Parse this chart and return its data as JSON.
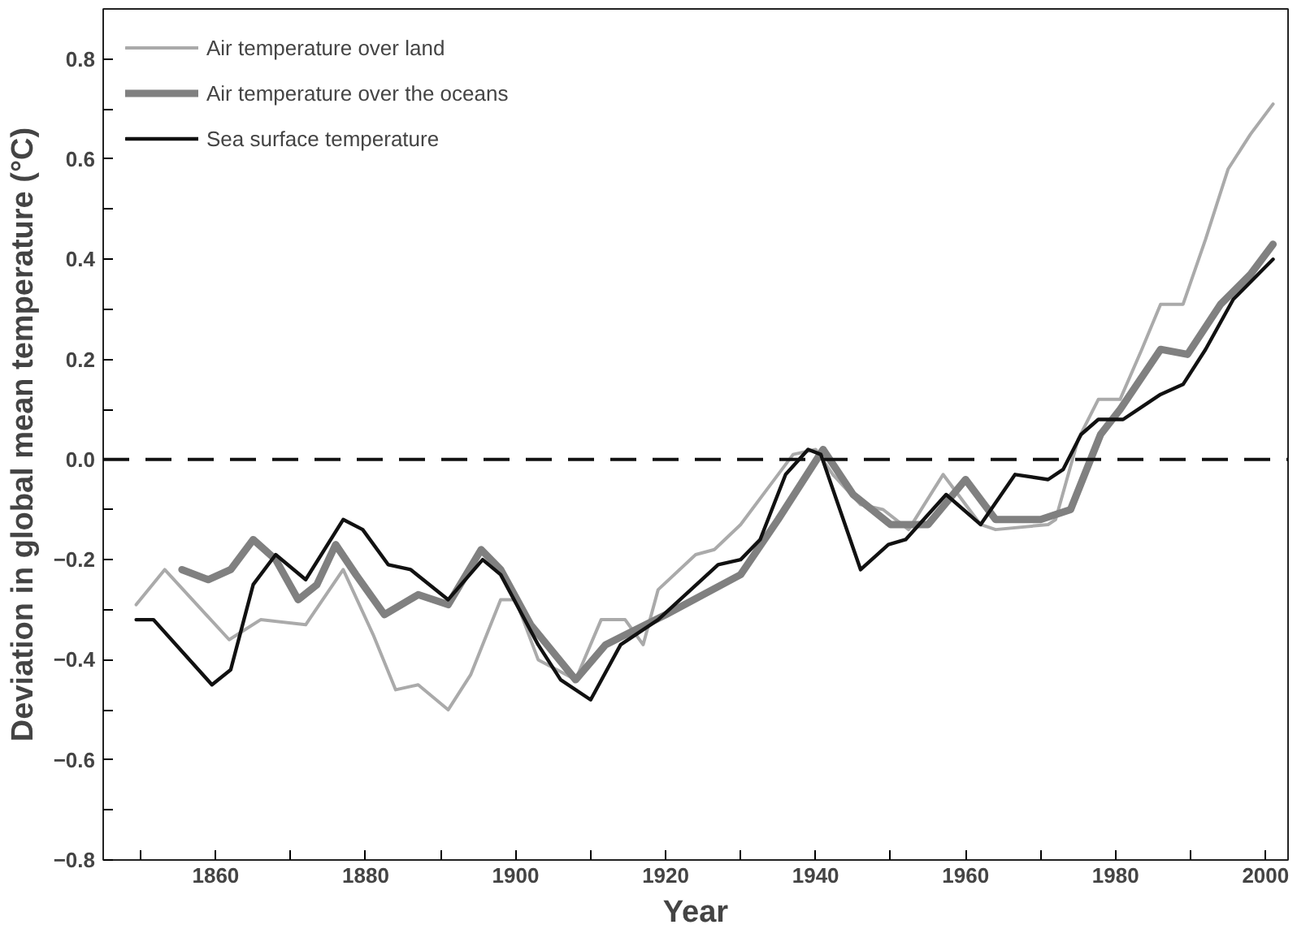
{
  "chart_data": {
    "type": "line",
    "xlabel": "Year",
    "ylabel": "Deviation in global mean temperature (°C)",
    "xlim": [
      1845,
      2003
    ],
    "ylim": [
      -0.8,
      0.9
    ],
    "xticks": [
      {
        "value": 1850,
        "label": null
      },
      1860,
      {
        "value": 1870,
        "label": null
      },
      1880,
      {
        "value": 1890,
        "label": null
      },
      1900,
      {
        "value": 1910,
        "label": null
      },
      1920,
      {
        "value": 1930,
        "label": null
      },
      1940,
      {
        "value": 1950,
        "label": null
      },
      1960,
      {
        "value": 1970,
        "label": null
      },
      1980,
      {
        "value": 1990,
        "label": null
      },
      2000
    ],
    "yticks": [
      {
        "value": -0.8,
        "label": "−0.8"
      },
      {
        "value": -0.7,
        "label": null
      },
      {
        "value": -0.6,
        "label": "−0.6"
      },
      {
        "value": -0.5,
        "label": null
      },
      {
        "value": -0.4,
        "label": "−0.4"
      },
      {
        "value": -0.3,
        "label": null
      },
      {
        "value": -0.2,
        "label": "−0.2"
      },
      {
        "value": -0.1,
        "label": null
      },
      {
        "value": 0,
        "label": "0.0"
      },
      {
        "value": 0.1,
        "label": null
      },
      {
        "value": 0.2,
        "label": "0.2"
      },
      {
        "value": 0.3,
        "label": null
      },
      {
        "value": 0.4,
        "label": "0.4"
      },
      {
        "value": 0.5,
        "label": null
      },
      {
        "value": 0.6,
        "label": "0.6"
      },
      {
        "value": 0.7,
        "label": null
      },
      {
        "value": 0.8,
        "label": "0.8"
      }
    ],
    "grid": false,
    "legend": "top left",
    "ref_lines": [
      {
        "axis": "y",
        "value": 0,
        "label": null,
        "color": "#111111",
        "line_style": "dashed"
      }
    ],
    "series": [
      {
        "name": "Air temperature over land",
        "color": "#aaaaaa",
        "x": [
          1849.4,
          1853.2,
          1861.8,
          1866,
          1872,
          1877,
          1881,
          1884,
          1887,
          1891,
          1894,
          1898,
          1900,
          1903,
          1908,
          1911.4,
          1914.6,
          1917,
          1919,
          1924,
          1926.5,
          1930,
          1934,
          1937,
          1940,
          1942.3,
          1946,
          1949,
          1952.4,
          1957,
          1962,
          1964,
          1971,
          1972,
          1975,
          1977.7,
          1980.6,
          1983.5,
          1986,
          1989,
          1992,
          1995,
          1998,
          2001
        ],
        "values": [
          -0.29,
          -0.22,
          -0.36,
          -0.32,
          -0.33,
          -0.22,
          -0.35,
          -0.46,
          -0.45,
          -0.5,
          -0.43,
          -0.28,
          -0.28,
          -0.4,
          -0.44,
          -0.32,
          -0.32,
          -0.37,
          -0.26,
          -0.19,
          -0.18,
          -0.13,
          -0.05,
          0.01,
          0.02,
          -0.03,
          -0.09,
          -0.1,
          -0.14,
          -0.03,
          -0.13,
          -0.14,
          -0.13,
          -0.12,
          0.04,
          0.12,
          0.12,
          0.22,
          0.31,
          0.31,
          0.44,
          0.58,
          0.65,
          0.71
        ]
      },
      {
        "name": "Air temperature over the oceans",
        "color": "#808080",
        "x": [
          1855.5,
          1859,
          1862,
          1865,
          1868,
          1871,
          1873.5,
          1876,
          1878.7,
          1882.5,
          1887,
          1891,
          1895.4,
          1898,
          1902,
          1908,
          1912,
          1920,
          1930,
          1935,
          1941,
          1945,
          1950,
          1955,
          1960,
          1964,
          1970,
          1974,
          1978,
          1980.6,
          1986,
          1989.6,
          1994,
          1998,
          2001
        ],
        "values": [
          -0.22,
          -0.24,
          -0.22,
          -0.16,
          -0.2,
          -0.28,
          -0.25,
          -0.17,
          -0.23,
          -0.31,
          -0.27,
          -0.29,
          -0.18,
          -0.22,
          -0.33,
          -0.44,
          -0.37,
          -0.31,
          -0.23,
          -0.12,
          0.02,
          -0.07,
          -0.13,
          -0.13,
          -0.04,
          -0.12,
          -0.12,
          -0.1,
          0.05,
          0.1,
          0.22,
          0.21,
          0.31,
          0.37,
          0.43
        ]
      },
      {
        "name": "Sea surface temperature",
        "color": "#111111",
        "x": [
          1849.4,
          1851.7,
          1859.5,
          1862,
          1865,
          1868,
          1872,
          1877,
          1879.6,
          1883,
          1886,
          1891,
          1895.6,
          1898,
          1903,
          1906,
          1910,
          1914,
          1919,
          1927,
          1930,
          1932.6,
          1936,
          1939,
          1940.7,
          1943,
          1946,
          1949.7,
          1952,
          1957.4,
          1962,
          1966.6,
          1971,
          1973,
          1975.4,
          1977.7,
          1981,
          1986,
          1989,
          1992,
          1995.7,
          2001
        ],
        "values": [
          -0.32,
          -0.32,
          -0.45,
          -0.42,
          -0.25,
          -0.19,
          -0.24,
          -0.12,
          -0.14,
          -0.21,
          -0.22,
          -0.28,
          -0.2,
          -0.23,
          -0.37,
          -0.44,
          -0.48,
          -0.37,
          -0.32,
          -0.21,
          -0.2,
          -0.16,
          -0.03,
          0.02,
          0.01,
          -0.09,
          -0.22,
          -0.17,
          -0.16,
          -0.07,
          -0.13,
          -0.03,
          -0.04,
          -0.02,
          0.05,
          0.08,
          0.08,
          0.13,
          0.15,
          0.22,
          0.32,
          0.4
        ]
      }
    ]
  }
}
